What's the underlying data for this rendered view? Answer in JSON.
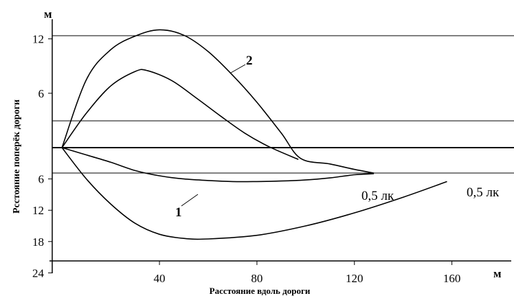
{
  "chart_data": {
    "type": "line",
    "title": "",
    "xlabel": "Расстояние вдоль дороги",
    "ylabel": "Рсстояние поперёк дороги",
    "x_unit": "м",
    "y_unit": "м",
    "xlim": [
      -4,
      168
    ],
    "x_ticks": [
      "40",
      "80",
      "120",
      "160"
    ],
    "y_ticks_upper": [
      "12",
      "6"
    ],
    "y_ticks_lower": [
      "6",
      "12",
      "18",
      "24"
    ],
    "grid": false,
    "legend": "none",
    "curves": [
      {
        "label": "2",
        "side": "above road axis (m)",
        "points": [
          [
            0,
            0
          ],
          [
            10,
            7.5
          ],
          [
            20,
            10.8
          ],
          [
            30,
            12.3
          ],
          [
            40,
            13
          ],
          [
            50,
            12.4
          ],
          [
            60,
            10.6
          ],
          [
            70,
            8
          ],
          [
            80,
            5
          ],
          [
            90,
            1.6
          ],
          [
            98,
            -1.2
          ],
          [
            110,
            -1.8
          ],
          [
            120,
            -2.4
          ],
          [
            128,
            -2.8
          ]
        ]
      },
      {
        "label": "",
        "side": "above road axis (m)",
        "points": [
          [
            0,
            0
          ],
          [
            10,
            3.8
          ],
          [
            20,
            6.8
          ],
          [
            30,
            8.4
          ],
          [
            35,
            8.5
          ],
          [
            45,
            7.4
          ],
          [
            55,
            5.5
          ],
          [
            65,
            3.5
          ],
          [
            75,
            1.6
          ],
          [
            85,
            0.1
          ],
          [
            97,
            -1.3
          ]
        ]
      },
      {
        "label": "1",
        "side": "below road axis (lower scale)",
        "points": [
          [
            0,
            0
          ],
          [
            10,
            1.4
          ],
          [
            20,
            2.8
          ],
          [
            30,
            4.4
          ],
          [
            40,
            5.4
          ],
          [
            50,
            6
          ],
          [
            60,
            6.3
          ],
          [
            70,
            6.5
          ],
          [
            80,
            6.5
          ],
          [
            90,
            6.4
          ],
          [
            100,
            6.2
          ],
          [
            110,
            5.8
          ],
          [
            120,
            5.2
          ],
          [
            128,
            5
          ]
        ]
      },
      {
        "label": "",
        "side": "below road axis (lower scale)",
        "points": [
          [
            0,
            0
          ],
          [
            10,
            6
          ],
          [
            20,
            10.8
          ],
          [
            30,
            14.5
          ],
          [
            40,
            16.6
          ],
          [
            50,
            17.4
          ],
          [
            60,
            17.5
          ],
          [
            80,
            16.8
          ],
          [
            100,
            15
          ],
          [
            120,
            12.5
          ],
          [
            140,
            9.5
          ],
          [
            158,
            6.5
          ]
        ]
      }
    ],
    "annotations": [
      "0,5 лк",
      "0,5 лк"
    ]
  }
}
